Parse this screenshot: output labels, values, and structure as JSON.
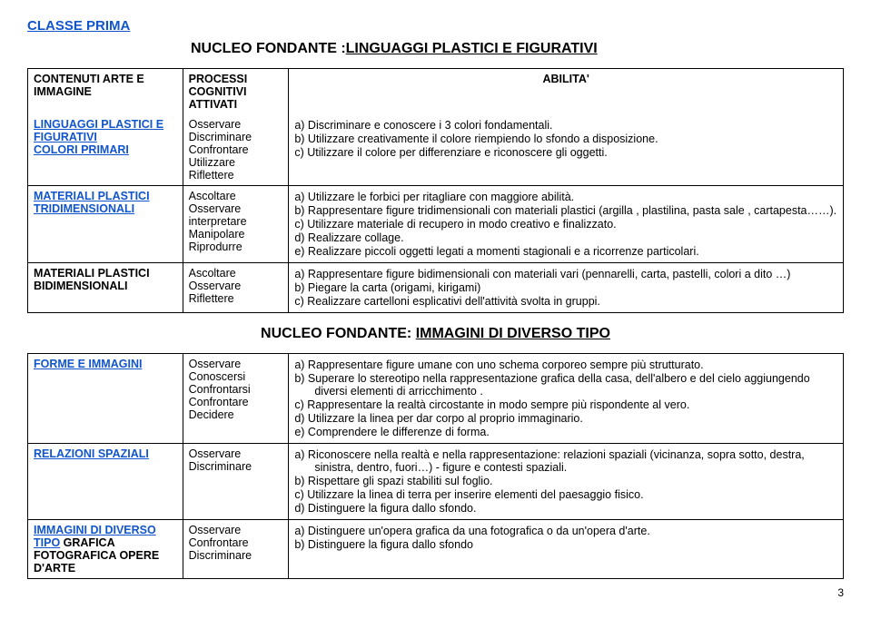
{
  "header": {
    "classe": "CLASSE PRIMA",
    "nucleo1_prefix": "NUCLEO FONDANTE :",
    "nucleo1_suffix": "LINGUAGGI PLASTICI E FIGURATIVI",
    "nucleo2_prefix": "NUCLEO FONDANTE: ",
    "nucleo2_suffix": "IMMAGINI DI DIVERSO TIPO"
  },
  "table1": {
    "head_col1": "CONTENUTI ARTE E IMMAGINE",
    "head_col2": "PROCESSI COGNITIVI ATTIVATI",
    "head_col3": "ABILITA'",
    "rows": [
      {
        "col1_html": "<span class='blue-link'>LINGUAGGI PLASTICI E FIGURATIVI</span><br><span class='blue-link'>COLORI PRIMARI</span>",
        "col2": "Osservare\nDiscriminare\nConfrontare\nUtilizzare\nRiflettere",
        "abilita": [
          "a)  Discriminare e conoscere i 3 colori fondamentali.",
          "b)  Utilizzare creativamente il colore riempiendo lo sfondo a disposizione.",
          "c)  Utilizzare il colore per differenziare e riconoscere gli oggetti."
        ]
      },
      {
        "col1_html": "<span class='blue-link'>MATERIALI PLASTICI TRIDIMENSIONALI</span>",
        "col2": "Ascoltare\nOsservare\ninterpretare\nManipolare\nRiprodurre",
        "abilita": [
          "a)  Utilizzare le forbici per ritagliare con maggiore abilità.",
          "b)  Rappresentare figure tridimensionali  con materiali plastici (argilla , plastilina, pasta sale , cartapesta……).",
          "c)  Utilizzare materiale di recupero in modo creativo e finalizzato.",
          "d)  Realizzare collage.",
          "e)  Realizzare piccoli oggetti legati a momenti stagionali e a ricorrenze particolari."
        ]
      },
      {
        "col1_html": "<span class='plain-bold'>MATERIALI PLASTICI BIDIMENSIONALI</span>",
        "col2": "Ascoltare\nOsservare\nRiflettere",
        "abilita": [
          "a)  Rappresentare figure bidimensionali con materiali vari (pennarelli, carta, pastelli, colori a dito …)",
          "b)  Piegare la carta (origami, kirigami)",
          "c)  Realizzare cartelloni esplicativi dell'attività svolta in gruppi."
        ]
      }
    ]
  },
  "table2": {
    "rows": [
      {
        "col1_html": "<span class='blue-link'>FORME E IMMAGINI</span>",
        "col2": "Osservare\nConoscersi\nConfrontarsi\nConfrontare\nDecidere",
        "abilita": [
          "a)  Rappresentare figure umane con uno schema corporeo sempre più strutturato.",
          "b)  Superare lo stereotipo nella rappresentazione grafica della casa, dell'albero e del cielo aggiungendo diversi elementi di arricchimento .",
          "c)  Rappresentare la realtà circostante in modo sempre più rispondente al vero.",
          "d)  Utilizzare la linea per dar corpo al proprio immaginario.",
          "e)  Comprendere le differenze di forma."
        ]
      },
      {
        "col1_html": "<span class='blue-link'>RELAZIONI SPAZIALI</span>",
        "col2": "Osservare\nDiscriminare",
        "abilita": [
          "a)  Riconoscere nella realtà e nella rappresentazione: relazioni spaziali (vicinanza, sopra sotto, destra, sinistra, dentro, fuori…) - figure e contesti spaziali.",
          "b)  Rispettare gli spazi stabiliti sul foglio.",
          "c)  Utilizzare la linea di terra per inserire elementi del paesaggio fisico.",
          "d)  Distinguere la figura dallo sfondo."
        ]
      },
      {
        "col1_html": "<span class='blue-link'>IMMAGINI DI DIVERSO TIPO</span>  <span class='plain-bold'>GRAFICA FOTOGRAFICA OPERE D'ARTE</span>",
        "col2": "Osservare\nConfrontare\nDiscriminare",
        "abilita": [
          "a)  Distinguere un'opera grafica da una fotografica o da un'opera d'arte.",
          "b)  Distinguere la figura dallo sfondo"
        ]
      }
    ]
  },
  "page_number": "3"
}
